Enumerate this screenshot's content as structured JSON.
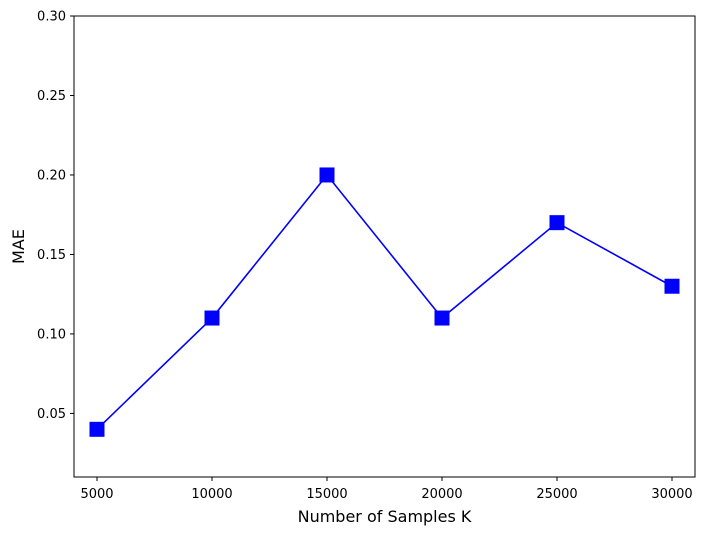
{
  "chart_data": {
    "type": "line",
    "title": "",
    "xlabel": "Number of Samples K",
    "ylabel": "MAE",
    "x": [
      5000,
      10000,
      15000,
      20000,
      25000,
      30000
    ],
    "series": [
      {
        "values": [
          0.04,
          0.11,
          0.2,
          0.11,
          0.17,
          0.13
        ],
        "color": "#0000ff",
        "marker": "square"
      }
    ],
    "x_ticks": [
      5000,
      10000,
      15000,
      20000,
      25000,
      30000
    ],
    "x_tick_labels": [
      "5000",
      "10000",
      "15000",
      "20000",
      "25000",
      "30000"
    ],
    "y_ticks": [
      0.05,
      0.1,
      0.15,
      0.2,
      0.25,
      0.3
    ],
    "y_tick_labels": [
      "0.05",
      "0.10",
      "0.15",
      "0.20",
      "0.25",
      "0.30"
    ],
    "xlim": [
      4000,
      31000
    ],
    "ylim": [
      0.01,
      0.3
    ],
    "grid": false,
    "legend": "none"
  }
}
